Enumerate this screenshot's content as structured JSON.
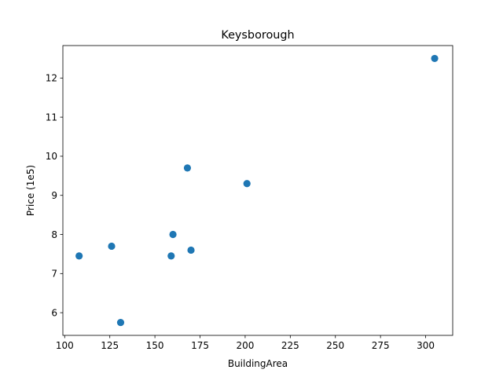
{
  "chart_data": {
    "type": "scatter",
    "title": "Keysborough",
    "xlabel": "BuildingArea",
    "ylabel": "Price (1e5)",
    "xlim": [
      99,
      315
    ],
    "ylim": [
      5.42,
      12.83
    ],
    "xticks": [
      100,
      125,
      150,
      175,
      200,
      225,
      250,
      275,
      300
    ],
    "yticks": [
      6,
      7,
      8,
      9,
      10,
      11,
      12
    ],
    "grid": false,
    "marker_color": "#1f77b4",
    "x": [
      108,
      126,
      131,
      159,
      160,
      168,
      170,
      201,
      305
    ],
    "y": [
      7.45,
      7.7,
      5.75,
      7.45,
      8.0,
      9.7,
      7.6,
      9.3,
      12.5
    ]
  }
}
